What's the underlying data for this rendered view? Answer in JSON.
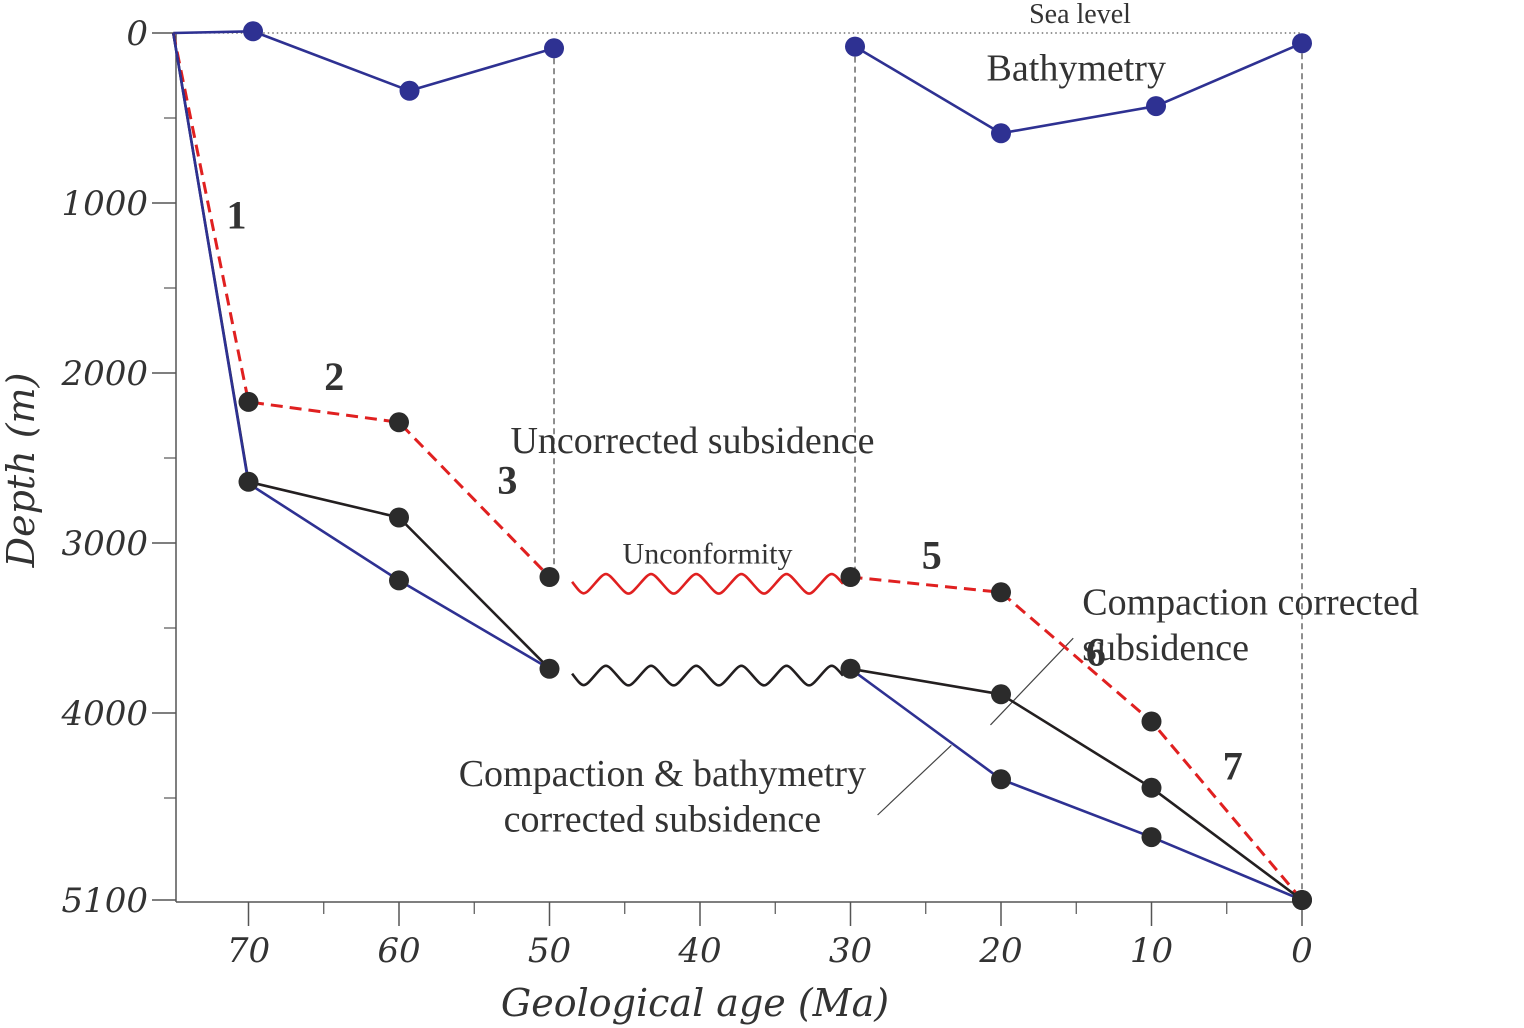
{
  "chart_data": {
    "type": "line",
    "xlabel": "Geological age (Ma)",
    "ylabel": "Depth (m)",
    "x_reversed": true,
    "xlim": [
      75,
      0
    ],
    "ylim": [
      0,
      5100
    ],
    "y_inverted": true,
    "xticks": [
      70,
      60,
      50,
      40,
      30,
      20,
      10,
      0
    ],
    "yticks": [
      0,
      1000,
      2000,
      3000,
      4000,
      5100
    ],
    "series": [
      {
        "key": "bathymetry",
        "color": "#2e3192",
        "style": "solid",
        "segments": [
          [
            [
              75,
              0
            ],
            [
              69.7,
              -10
            ]
          ],
          [
            [
              69.7,
              -10
            ],
            [
              59.3,
              340
            ],
            [
              49.7,
              90
            ]
          ],
          [
            [
              29.7,
              80
            ],
            [
              20,
              590
            ],
            [
              9.7,
              430
            ],
            [
              0,
              60
            ]
          ]
        ],
        "points": [
          [
            69.7,
            -10
          ],
          [
            59.3,
            340
          ],
          [
            49.7,
            90
          ],
          [
            29.7,
            80
          ],
          [
            20,
            590
          ],
          [
            9.7,
            430
          ],
          [
            0,
            60
          ]
        ]
      },
      {
        "key": "uncorrected",
        "color": "#e02020",
        "style": "dashed",
        "segments": [
          [
            [
              75,
              0
            ],
            [
              70,
              2170
            ],
            [
              60,
              2290
            ],
            [
              50,
              3200
            ]
          ],
          [
            [
              30,
              3200
            ],
            [
              20,
              3290
            ],
            [
              10,
              4050
            ],
            [
              0,
              5100
            ]
          ]
        ],
        "points": [
          [
            70,
            2170
          ],
          [
            60,
            2290
          ],
          [
            50,
            3200
          ],
          [
            30,
            3200
          ],
          [
            20,
            3290
          ],
          [
            10,
            4050
          ],
          [
            0,
            5100
          ]
        ]
      },
      {
        "key": "compaction",
        "color": "#231f20",
        "style": "solid",
        "segments": [
          [
            [
              75,
              0
            ],
            [
              70,
              2640
            ],
            [
              60,
              2850
            ],
            [
              50,
              3740
            ]
          ],
          [
            [
              30,
              3740
            ],
            [
              20,
              3890
            ],
            [
              10,
              4440
            ],
            [
              0,
              5100
            ]
          ]
        ],
        "points": [
          [
            70,
            2640
          ],
          [
            60,
            2850
          ],
          [
            50,
            3740
          ],
          [
            30,
            3740
          ],
          [
            20,
            3890
          ],
          [
            10,
            4440
          ],
          [
            0,
            5100
          ]
        ]
      },
      {
        "key": "compaction_bathymetry",
        "color": "#2e3192",
        "style": "solid",
        "segments": [
          [
            [
              75,
              0
            ],
            [
              70,
              2650
            ],
            [
              60,
              3220
            ],
            [
              50,
              3740
            ]
          ],
          [
            [
              30,
              3740
            ],
            [
              20,
              4390
            ],
            [
              10,
              4730
            ],
            [
              0,
              5100
            ]
          ]
        ],
        "points": [
          [
            60,
            3220
          ],
          [
            20,
            4390
          ],
          [
            10,
            4730
          ]
        ]
      }
    ],
    "unconformities": [
      {
        "x": [
          48.5,
          30.5
        ],
        "y": 3240,
        "color": "#e02020"
      },
      {
        "x": [
          48.5,
          30.5
        ],
        "y": 3780,
        "color": "#231f20"
      }
    ],
    "sea_level": {
      "label": "Sea level",
      "y": 0,
      "x": [
        75,
        0
      ]
    },
    "verticals": [
      {
        "x": 49.7,
        "y": [
          90,
          3200
        ]
      },
      {
        "x": 29.7,
        "y": [
          80,
          3200
        ]
      },
      {
        "x": 0,
        "y": [
          60,
          5100
        ]
      }
    ],
    "segment_numbers": [
      {
        "text": "1",
        "x": 70.8,
        "y": 1150
      },
      {
        "text": "2",
        "x": 64.3,
        "y": 2100
      },
      {
        "text": "3",
        "x": 52.8,
        "y": 2710
      },
      {
        "text": "5",
        "x": 24.6,
        "y": 3150
      },
      {
        "text": "6",
        "x": 13.7,
        "y": 3720
      },
      {
        "text": "7",
        "x": 4.6,
        "y": 4390
      }
    ],
    "annotations": [
      {
        "key": "bathymetry",
        "lines": [
          "Bathymetry"
        ],
        "x": 15,
        "y": 280,
        "size": 38,
        "anchor": "middle"
      },
      {
        "key": "uncorrected",
        "lines": [
          "Uncorrected subsidence"
        ],
        "x": 40.5,
        "y": 2470,
        "size": 38,
        "anchor": "middle"
      },
      {
        "key": "unconformity",
        "lines": [
          "Unconformity"
        ],
        "x": 39.5,
        "y": 3120,
        "size": 30,
        "anchor": "middle"
      },
      {
        "key": "compaction",
        "lines": [
          "Compaction corrected",
          "subsidence"
        ],
        "x": 14.6,
        "y": 3420,
        "size": 38,
        "anchor": "start",
        "leader": [
          [
            15.2,
            3560
          ],
          [
            20.7,
            4070
          ]
        ]
      },
      {
        "key": "compaction_bathymetry",
        "lines": [
          "Compaction & bathymetry",
          "corrected subsidence"
        ],
        "x": 42.5,
        "y": 4430,
        "size": 38,
        "anchor": "middle",
        "leader": [
          [
            23.3,
            4190
          ],
          [
            28.2,
            4600
          ]
        ]
      }
    ]
  }
}
